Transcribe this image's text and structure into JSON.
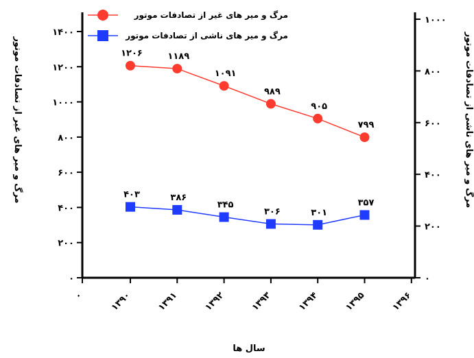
{
  "chart_data": {
    "type": "line",
    "x": [
      "۱۳۹۰",
      "۱۳۹۱",
      "۱۳۹۲",
      "۱۳۹۳",
      "۱۳۹۴",
      "۱۳۹۵"
    ],
    "xticks": [
      "۰",
      "۱۳۹۰",
      "۱۳۹۱",
      "۱۳۹۲",
      "۱۳۹۳",
      "۱۳۹۴",
      "۱۳۹۵",
      "۱۳۹۶"
    ],
    "xlabel": "سال ها",
    "ylabel_left": "مرگ و میر های غیر از تصادفات موتور",
    "ylabel_right": "مرگ و میر های ناشی از تصادفات موتور",
    "ylim_left": [
      0,
      1400
    ],
    "yticks_left": [
      "۰",
      "۲۰۰",
      "۴۰۰",
      "۶۰۰",
      "۸۰۰",
      "۱۰۰۰",
      "۱۲۰۰",
      "۱۴۰۰"
    ],
    "ylim_right": [
      0,
      1000
    ],
    "yticks_right": [
      "۰",
      "۲۰۰",
      "۴۰۰",
      "۶۰۰",
      "۸۰۰",
      "۱۰۰۰"
    ],
    "legend_position": "top",
    "grid": false,
    "series": [
      {
        "name": "مرگ و میر های غیر از تصادفات موتور",
        "axis": "left",
        "color": "#ff3b30",
        "marker": "circle",
        "values": [
          1206,
          1189,
          1091,
          989,
          905,
          799
        ],
        "labels": [
          "۱۲۰۶",
          "۱۱۸۹",
          "۱۰۹۱",
          "۹۸۹",
          "۹۰۵",
          "۷۹۹"
        ]
      },
      {
        "name": "مرگ و میر های ناشی از تصادفات موتور",
        "axis": "left",
        "color": "#1f3bff",
        "marker": "square",
        "values": [
          403,
          386,
          345,
          306,
          301,
          357
        ],
        "labels": [
          "۴۰۳",
          "۳۸۶",
          "۳۴۵",
          "۳۰۶",
          "۳۰۱",
          "۳۵۷"
        ]
      }
    ]
  }
}
